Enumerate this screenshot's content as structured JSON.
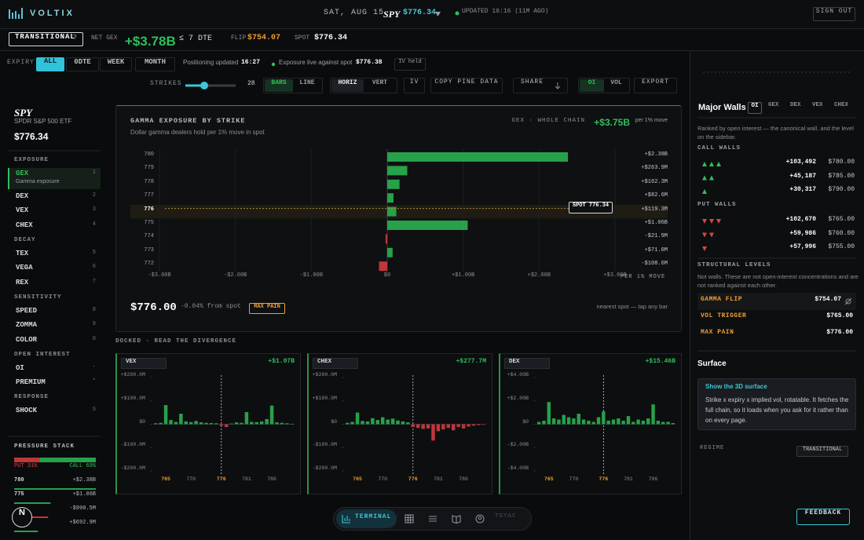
{
  "header": {
    "logo": "VOLTIX",
    "date": "SAT, AUG 15",
    "ticker": "SPY",
    "price": "$776.34",
    "updated": "UPDATED 16:16 (11M AGO)",
    "sign_out": "SIGN OUT"
  },
  "status": {
    "regime": "TRANSITIONAL",
    "help": "?",
    "net_gex_label": "NET GEX",
    "net_gex": "+$3.78B",
    "dte": "≤ 7 DTE",
    "flip_label": "FLIP",
    "flip": "$754.07",
    "spot_label": "SPOT",
    "spot": "$776.34"
  },
  "toolbar": {
    "expiry_label": "EXPIRY",
    "expiry": [
      "ALL",
      "0DTE",
      "WEEK",
      "MONTH"
    ],
    "positioning": "Positioning updated",
    "positioning_time": "16:27",
    "exposure": "Exposure live against spot",
    "exposure_spot": "$776.38",
    "iv_held": "IV held",
    "strikes_label": "STRIKES",
    "strikes": "28",
    "style": [
      "BARS",
      "LINE"
    ],
    "orientation": [
      "HORIZ",
      "VERT"
    ],
    "iv": "IV",
    "copy": "COPY PINE DATA",
    "share": "SHARE",
    "measure": [
      "OI",
      "VOL"
    ],
    "export": "EXPORT"
  },
  "sidebar": {
    "ticker": "SPY",
    "name": "SPDR S&P 500 ETF",
    "price": "$776.34",
    "groups": [
      {
        "title": "EXPOSURE",
        "items": [
          {
            "label": "GEX",
            "key": "1",
            "desc": "Gamma exposure"
          },
          {
            "label": "DEX",
            "key": "2"
          },
          {
            "label": "VEX",
            "key": "3"
          },
          {
            "label": "CHEX",
            "key": "4"
          }
        ]
      },
      {
        "title": "DECAY",
        "items": [
          {
            "label": "TEX",
            "key": "5"
          },
          {
            "label": "VEGA",
            "key": "6"
          },
          {
            "label": "REX",
            "key": "7"
          }
        ]
      },
      {
        "title": "SENSITIVITY",
        "items": [
          {
            "label": "SPEED",
            "key": "8"
          },
          {
            "label": "ZOMMA",
            "key": "9"
          },
          {
            "label": "COLOR",
            "key": "0"
          }
        ]
      },
      {
        "title": "OPEN INTEREST",
        "items": [
          {
            "label": "OI",
            "key": "-"
          },
          {
            "label": "PREMIUM",
            "key": "*"
          }
        ]
      },
      {
        "title": "RESPONSE",
        "items": [
          {
            "label": "SHOCK",
            "key": "S"
          }
        ]
      }
    ],
    "pressure": {
      "title": "PRESSURE STACK",
      "put": {
        "value": 31,
        "label": "PUT 31%"
      },
      "call": {
        "value": 69,
        "label": "CALL 69%"
      },
      "rows": [
        {
          "strike": "780",
          "value": 2.38,
          "value_label": "+$2.38B"
        },
        {
          "strike": "775",
          "value": 1.06,
          "value_label": "+$1.06B"
        },
        {
          "strike": null,
          "value": -0.9905,
          "value_label": "-$990.5M"
        },
        {
          "strike": null,
          "value": 0.6929,
          "value_label": "+$692.9M"
        }
      ]
    }
  },
  "chart_data": [
    {
      "type": "bar",
      "orientation": "horizontal",
      "title": "GAMMA EXPOSURE BY STRIKE",
      "subtitle": "Dollar gamma dealers hold per 1% move in spot",
      "summary_label": "GEX · WHOLE CHAIN",
      "summary": "+$3.75B",
      "summary_unit": "per 1% move",
      "x_label": "PER 1% MOVE",
      "categories": [
        "780",
        "779",
        "778",
        "777",
        "776",
        "775",
        "774",
        "773",
        "772"
      ],
      "values": [
        2.38,
        0.2639,
        0.1623,
        0.0826,
        0.1193,
        1.06,
        -0.0219,
        0.071,
        -0.1086
      ],
      "value_labels": [
        "+$2.38B",
        "+$263.9M",
        "+$162.3M",
        "+$82.6M",
        "+$119.3M",
        "+$1.06B",
        "-$21.9M",
        "+$71.0M",
        "-$108.6M"
      ],
      "xlim": [
        -3,
        3
      ],
      "xticks": [
        {
          "value": -3,
          "label": "-$3.00B"
        },
        {
          "value": -2,
          "label": "-$2.00B"
        },
        {
          "value": -1,
          "label": "-$1.00B"
        },
        {
          "value": 0,
          "label": "$0"
        },
        {
          "value": 1,
          "label": "+$1.00B"
        },
        {
          "value": 2,
          "label": "+$2.00B"
        },
        {
          "value": 3,
          "label": "+$3.00B"
        }
      ],
      "grid": true,
      "color": "#27a14a",
      "negative_color": "#c0363a",
      "highlight_category": "776",
      "spot_label": "SPOT 776.34",
      "footer_price": "$776.00",
      "footer_change": "-0.04% from spot",
      "footer_badge": "MAX PAIN",
      "footer_hint": "nearest spot — tap any bar"
    },
    {
      "type": "bar",
      "selector": "VEX",
      "total": "+$1.07B",
      "categories": [
        null,
        null,
        "765",
        null,
        null,
        null,
        null,
        "770",
        null,
        null,
        null,
        null,
        null,
        "776",
        null,
        null,
        null,
        null,
        "781",
        null,
        null,
        null,
        null,
        "786",
        null,
        null,
        null,
        null
      ],
      "values": [
        4,
        6,
        82,
        18,
        10,
        45,
        12,
        9,
        14,
        8,
        6,
        5,
        4,
        -6,
        -12,
        3,
        8,
        6,
        52,
        10,
        9,
        12,
        22,
        80,
        8,
        6,
        4,
        2
      ],
      "ylim": [
        -200,
        200
      ],
      "yticks": [
        {
          "value": 200,
          "label": "+$200.0M"
        },
        {
          "value": 100,
          "label": "+$100.0M"
        },
        {
          "value": 0,
          "label": "$0"
        },
        {
          "value": -100,
          "label": "-$100.0M"
        },
        {
          "value": -200,
          "label": "-$200.0M"
        }
      ],
      "color": "#27a14a",
      "negative_color": "#c0363a",
      "highlight_categories": [
        "765",
        "776"
      ],
      "spot_category": "776"
    },
    {
      "type": "bar",
      "selector": "CHEX",
      "total": "+$277.7M",
      "categories": [
        null,
        null,
        "765",
        null,
        null,
        null,
        null,
        "770",
        null,
        null,
        null,
        null,
        null,
        "776",
        null,
        null,
        null,
        null,
        "781",
        null,
        null,
        null,
        null,
        "786",
        null,
        null,
        null,
        null
      ],
      "values": [
        6,
        10,
        50,
        14,
        12,
        26,
        18,
        30,
        20,
        24,
        16,
        12,
        8,
        -12,
        -16,
        -20,
        -18,
        -70,
        -30,
        -22,
        -16,
        -26,
        -12,
        -18,
        -10,
        -6,
        -4,
        -2
      ],
      "ylim": [
        -200,
        200
      ],
      "yticks": [
        {
          "value": 200,
          "label": "+$200.0M"
        },
        {
          "value": 100,
          "label": "+$100.0M"
        },
        {
          "value": 0,
          "label": "$0"
        },
        {
          "value": -100,
          "label": "-$100.0M"
        },
        {
          "value": -200,
          "label": "-$200.0M"
        }
      ],
      "color": "#27a14a",
      "negative_color": "#c0363a",
      "highlight_categories": [
        "765",
        "776"
      ],
      "spot_category": "776"
    },
    {
      "type": "bar",
      "selector": "DEX",
      "total": "+$15.46B",
      "categories": [
        null,
        null,
        "765",
        null,
        null,
        null,
        null,
        "770",
        null,
        null,
        null,
        null,
        null,
        "776",
        null,
        null,
        null,
        null,
        "781",
        null,
        null,
        null,
        null,
        "786",
        null,
        null,
        null,
        null
      ],
      "values": [
        0.2,
        0.3,
        1.9,
        0.5,
        0.4,
        0.8,
        0.6,
        0.5,
        0.9,
        0.4,
        0.3,
        0.2,
        0.6,
        1.1,
        0.3,
        0.4,
        0.5,
        0.3,
        0.7,
        0.2,
        0.4,
        0.3,
        0.5,
        1.7,
        0.3,
        0.2,
        0.2,
        0.1
      ],
      "ylim": [
        -4,
        4
      ],
      "yticks": [
        {
          "value": 4,
          "label": "+$4.00B"
        },
        {
          "value": 2,
          "label": "+$2.00B"
        },
        {
          "value": 0,
          "label": "$0"
        },
        {
          "value": -2,
          "label": "-$2.00B"
        },
        {
          "value": -4,
          "label": "-$4.00B"
        }
      ],
      "color": "#27a14a",
      "negative_color": "#c0363a",
      "highlight_categories": [
        "765",
        "776"
      ],
      "spot_category": "776"
    }
  ],
  "docked_title": "DOCKED · READ THE DIVERGENCE",
  "walls": {
    "title": "Major Walls",
    "tabs": [
      "OI",
      "GEX",
      "DEX",
      "VEX",
      "CHEX"
    ],
    "desc": "Ranked by open interest — the canonical wall, and the level on the sidebar.",
    "call_title": "CALL WALLS",
    "calls": [
      {
        "oi": "+103,492",
        "strike": "$780.00"
      },
      {
        "oi": "+45,187",
        "strike": "$785.00"
      },
      {
        "oi": "+30,317",
        "strike": "$790.00"
      }
    ],
    "put_title": "PUT WALLS",
    "puts": [
      {
        "oi": "+102,670",
        "strike": "$765.00"
      },
      {
        "oi": "+59,986",
        "strike": "$760.00"
      },
      {
        "oi": "+57,996",
        "strike": "$755.00"
      }
    ]
  },
  "levels": {
    "title": "STRUCTURAL LEVELS",
    "desc": "Not walls. These are not open-interest concentrations and are not ranked against each other.",
    "items": [
      {
        "label": "GAMMA FLIP",
        "value": "$754.07"
      },
      {
        "label": "VOL TRIGGER",
        "value": "$765.00"
      },
      {
        "label": "MAX PAIN",
        "value": "$776.00"
      }
    ]
  },
  "surface": {
    "title": "Surface",
    "link": "Show the 3D surface",
    "desc": "Strike x expiry x implied vol, rotatable. It fetches the full chain, so it loads when you ask for it rather than on every page."
  },
  "regime": {
    "label": "REGIME",
    "value": "TRANSITIONAL"
  },
  "feedback": "FEEDBACK",
  "nav": {
    "active": "TERMINAL",
    "user": "TGYAC"
  },
  "fab": "N"
}
